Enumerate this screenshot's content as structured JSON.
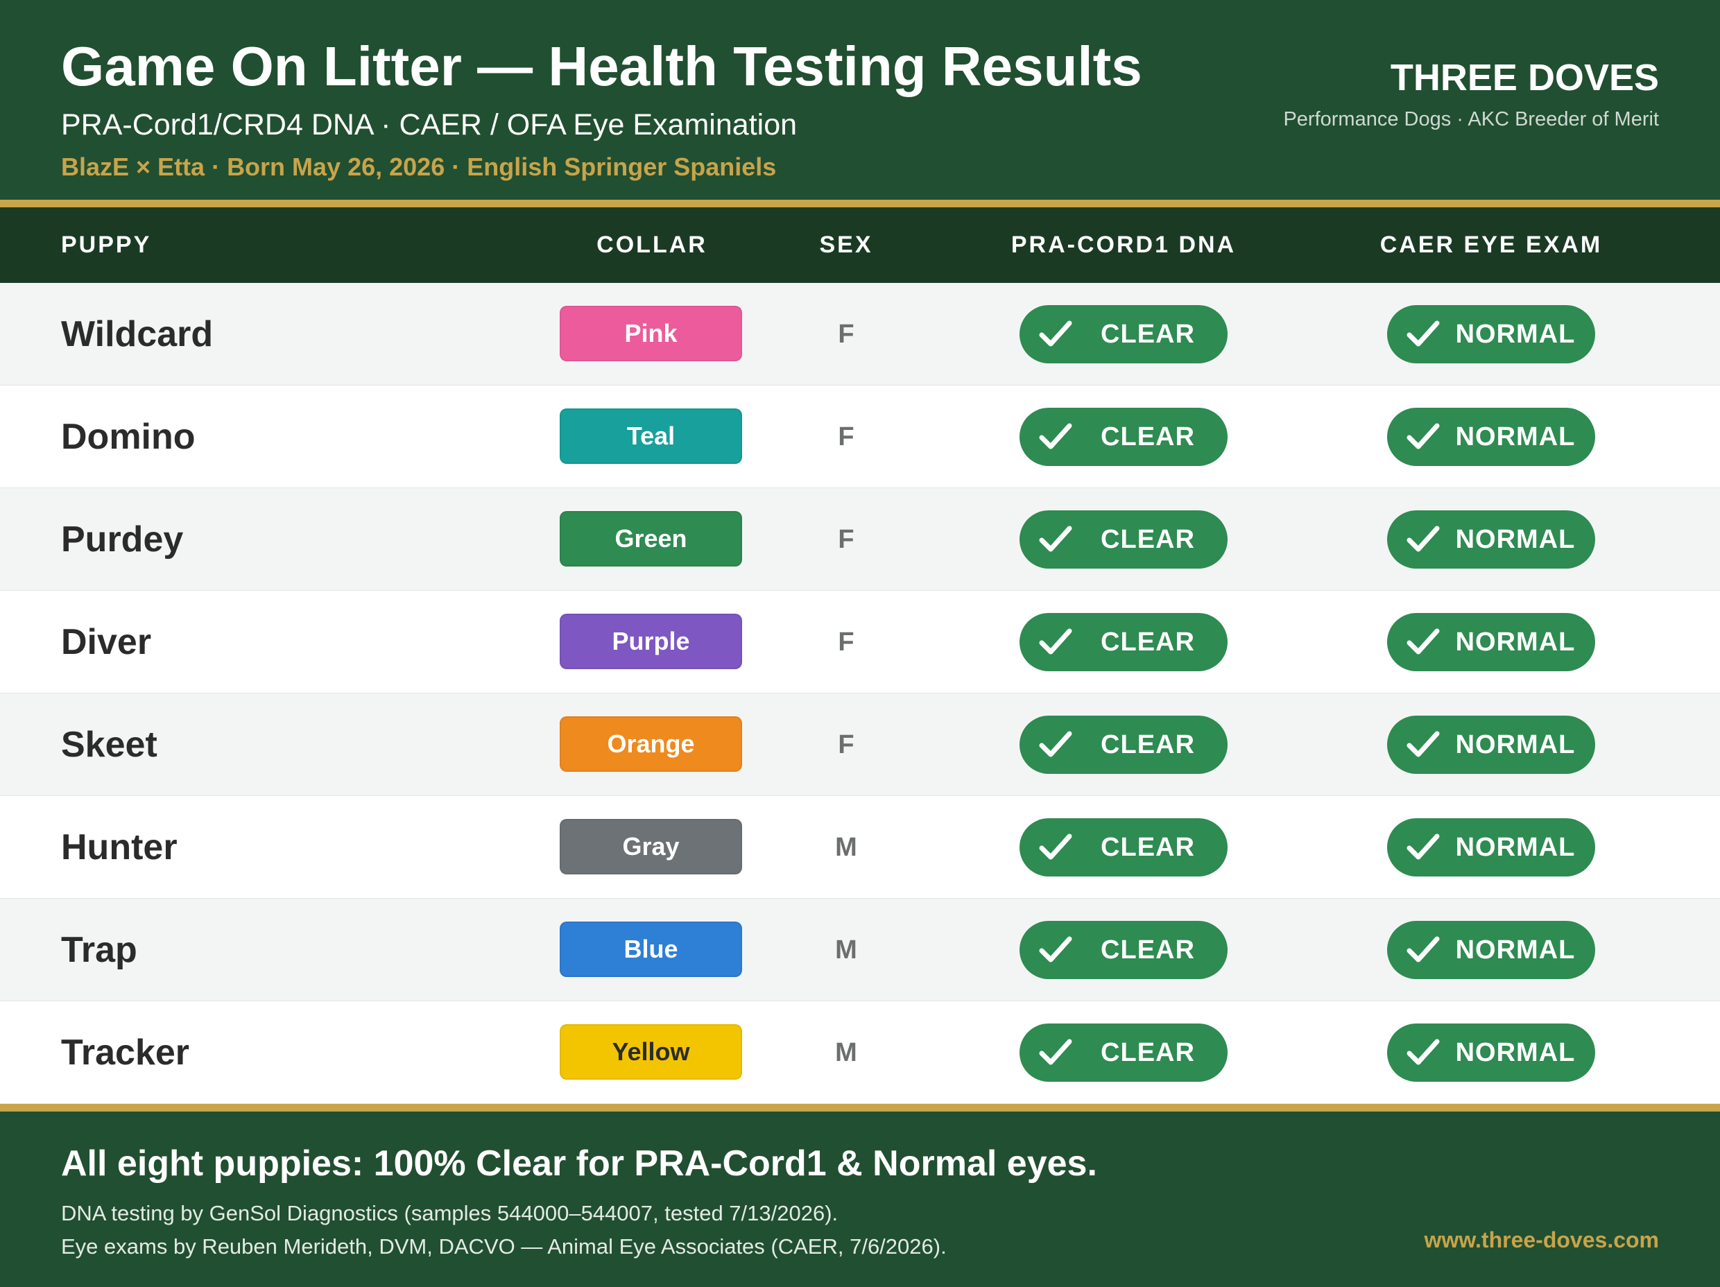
{
  "header": {
    "title": "Game On Litter — Health Testing Results",
    "subtitle": "PRA-Cord1/CRD4 DNA · CAER / OFA Eye Examination",
    "tagline": "BlazE × Etta · Born May 26, 2026 · English Springer Spaniels",
    "brand": "THREE DOVES",
    "brand_sub": "Performance Dogs · AKC Breeder of Merit"
  },
  "table": {
    "columns": [
      "PUPPY",
      "COLLAR",
      "SEX",
      "PRA-CORD1 DNA",
      "CAER EYE EXAM"
    ],
    "rows": [
      {
        "name": "Wildcard",
        "collar": "Pink",
        "collar_color": "#ec5c9c",
        "collar_text_color": "#ffffff",
        "sex": "F",
        "dna": "CLEAR",
        "eye": "NORMAL"
      },
      {
        "name": "Domino",
        "collar": "Teal",
        "collar_color": "#17a09c",
        "collar_text_color": "#ffffff",
        "sex": "F",
        "dna": "CLEAR",
        "eye": "NORMAL"
      },
      {
        "name": "Purdey",
        "collar": "Green",
        "collar_color": "#2e8b51",
        "collar_text_color": "#ffffff",
        "sex": "F",
        "dna": "CLEAR",
        "eye": "NORMAL"
      },
      {
        "name": "Diver",
        "collar": "Purple",
        "collar_color": "#7e57c2",
        "collar_text_color": "#ffffff",
        "sex": "F",
        "dna": "CLEAR",
        "eye": "NORMAL"
      },
      {
        "name": "Skeet",
        "collar": "Orange",
        "collar_color": "#ef8a1e",
        "collar_text_color": "#ffffff",
        "sex": "F",
        "dna": "CLEAR",
        "eye": "NORMAL"
      },
      {
        "name": "Hunter",
        "collar": "Gray",
        "collar_color": "#6c7275",
        "collar_text_color": "#ffffff",
        "sex": "M",
        "dna": "CLEAR",
        "eye": "NORMAL"
      },
      {
        "name": "Trap",
        "collar": "Blue",
        "collar_color": "#2e7fd6",
        "collar_text_color": "#ffffff",
        "sex": "M",
        "dna": "CLEAR",
        "eye": "NORMAL"
      },
      {
        "name": "Tracker",
        "collar": "Yellow",
        "collar_color": "#f2c500",
        "collar_text_color": "#2b2b2b",
        "sex": "M",
        "dna": "CLEAR",
        "eye": "NORMAL"
      }
    ]
  },
  "footer": {
    "headline": "All eight puppies: 100% Clear for PRA-Cord1 & Normal eyes.",
    "note1": "DNA testing by GenSol Diagnostics (samples 544000–544007, tested 7/13/2026).",
    "note2": "Eye exams by Reuben Merideth, DVM, DACVO — Animal Eye Associates (CAER, 7/6/2026).",
    "website": "www.three-doves.com"
  },
  "colors": {
    "header_bg": "#214f31",
    "table_head_bg": "#1a3a24",
    "accent_gold": "#c8a44b",
    "status_green": "#2e8b51"
  },
  "icons": {
    "status": "checkmark-icon"
  }
}
